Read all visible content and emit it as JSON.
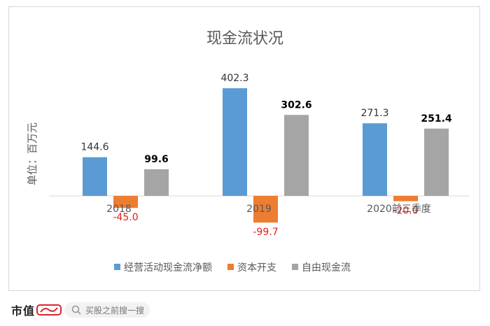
{
  "chart_data": {
    "type": "bar",
    "title": "现金流状况",
    "ylabel": "单位：百万元",
    "categories": [
      "2018",
      "2019",
      "2020前三季度"
    ],
    "series": [
      {
        "name": "经营活动现金流净额",
        "values": [
          144.6,
          402.3,
          271.3
        ],
        "labels": [
          "144.6",
          "402.3",
          "271.3"
        ],
        "color": "#5b9bd5",
        "label_bold": false,
        "label_color": "#333333"
      },
      {
        "name": "资本开支",
        "values": [
          -45.0,
          -99.7,
          -20.0
        ],
        "labels": [
          "-45.0",
          "-99.7",
          "-20.0"
        ],
        "color": "#ed7d31",
        "label_bold": false,
        "label_color": "#e0201b"
      },
      {
        "name": "自由现金流",
        "values": [
          99.6,
          302.6,
          251.4
        ],
        "labels": [
          "99.6",
          "302.6",
          "251.4"
        ],
        "color": "#a5a5a5",
        "label_bold": true,
        "label_color": "#000000"
      }
    ],
    "ylim": [
      -120,
      480
    ],
    "grid": false,
    "legend": "bottom"
  },
  "footer": {
    "brand": "市值",
    "search_placeholder": "买股之前搜一搜"
  }
}
